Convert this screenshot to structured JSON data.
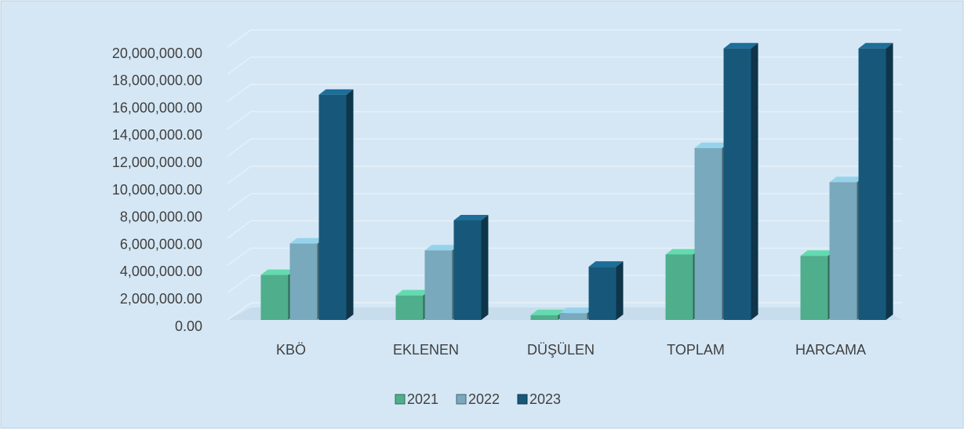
{
  "chart_data": {
    "type": "bar3d",
    "categories": [
      "KBÖ",
      "EKLENEN",
      "DÜŞÜLEN",
      "TOPLAM",
      "HARCAMA"
    ],
    "series": [
      {
        "name": "2021",
        "color": "#4fae8c",
        "values": [
          3300000,
          1800000,
          350000,
          4800000,
          4700000
        ]
      },
      {
        "name": "2022",
        "color": "#78a9bc",
        "values": [
          5600000,
          5100000,
          500000,
          12600000,
          10100000
        ]
      },
      {
        "name": "2023",
        "color": "#17587a",
        "values": [
          16500000,
          7300000,
          3900000,
          19900000,
          19900000
        ]
      }
    ],
    "ylim": [
      0,
      20000000
    ],
    "yticks": [
      {
        "value": 0,
        "label": "0.00"
      },
      {
        "value": 2000000,
        "label": "2,000,000.00"
      },
      {
        "value": 4000000,
        "label": "4,000,000.00"
      },
      {
        "value": 6000000,
        "label": "6,000,000.00"
      },
      {
        "value": 8000000,
        "label": "8,000,000.00"
      },
      {
        "value": 10000000,
        "label": "10,000,000.00"
      },
      {
        "value": 12000000,
        "label": "12,000,000.00"
      },
      {
        "value": 14000000,
        "label": "14,000,000.00"
      },
      {
        "value": 16000000,
        "label": "16,000,000.00"
      },
      {
        "value": 18000000,
        "label": "18,000,000.00"
      },
      {
        "value": 20000000,
        "label": "20,000,000.00"
      }
    ],
    "grid": true
  }
}
